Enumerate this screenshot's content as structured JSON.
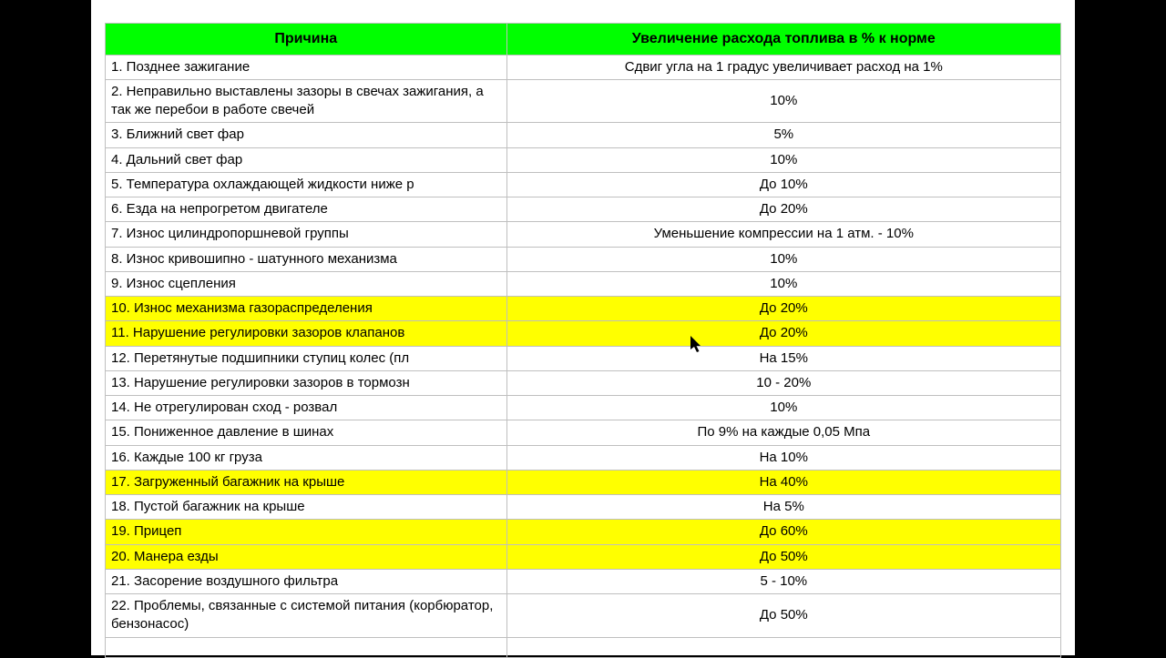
{
  "table": {
    "header_bg": "#00ff00",
    "highlight_bg": "#ffff00",
    "border_color": "#bfbfbf",
    "columns": [
      "Причина",
      "Увеличение расхода топлива в % к норме"
    ],
    "rows": [
      {
        "cause": "1. Позднее зажигание",
        "value": "Сдвиг угла на 1 градус увеличивает расход на 1%",
        "highlight": false,
        "wrap": false
      },
      {
        "cause": "2. Неправильно выставлены зазоры в свечах зажигания, а так же перебои в работе свечей",
        "value": "10%",
        "highlight": false,
        "wrap": true
      },
      {
        "cause": "3. Ближний свет фар",
        "value": "5%",
        "highlight": false,
        "wrap": false
      },
      {
        "cause": "4. Дальний свет фар",
        "value": "10%",
        "highlight": false,
        "wrap": false
      },
      {
        "cause": "5. Температура охлаждающей жидкости ниже р",
        "value": "До 10%",
        "highlight": false,
        "wrap": false
      },
      {
        "cause": "6. Езда на непрогретом двигателе",
        "value": "До 20%",
        "highlight": false,
        "wrap": false
      },
      {
        "cause": "7. Износ цилиндропоршневой группы",
        "value": "Уменьшение компрессии на 1 атм. - 10%",
        "highlight": false,
        "wrap": false
      },
      {
        "cause": "8. Износ кривошипно - шатунного механизма",
        "value": "10%",
        "highlight": false,
        "wrap": false
      },
      {
        "cause": "9. Износ сцепления",
        "value": "10%",
        "highlight": false,
        "wrap": false
      },
      {
        "cause": "10. Износ механизма газораспределения",
        "value": "До 20%",
        "highlight": true,
        "wrap": false
      },
      {
        "cause": "11. Нарушение регулировки зазоров клапанов",
        "value": "До 20%",
        "highlight": true,
        "wrap": false
      },
      {
        "cause": "12. Перетянутые подшипники ступиц колес (пл",
        "value": "На 15%",
        "highlight": false,
        "wrap": false
      },
      {
        "cause": "13. Нарушение регулировки зазоров в тормозн",
        "value": "10 - 20%",
        "highlight": false,
        "wrap": false
      },
      {
        "cause": "14. Не отрегулирован сход - розвал",
        "value": "10%",
        "highlight": false,
        "wrap": false
      },
      {
        "cause": "15. Пониженное давление в шинах",
        "value": "По 9% на каждые 0,05 Мпа",
        "highlight": false,
        "wrap": false
      },
      {
        "cause": "16. Каждые 100 кг груза",
        "value": "На 10%",
        "highlight": false,
        "wrap": false
      },
      {
        "cause": "17. Загруженный багажник на крыше",
        "value": "На 40%",
        "highlight": true,
        "wrap": false
      },
      {
        "cause": "18. Пустой багажник на крыше",
        "value": "На 5%",
        "highlight": false,
        "wrap": false
      },
      {
        "cause": "19. Прицеп",
        "value": "До 60%",
        "highlight": true,
        "wrap": false
      },
      {
        "cause": "20. Манера езды",
        "value": "До 50%",
        "highlight": true,
        "wrap": false
      },
      {
        "cause": "21. Засорение воздушного фильтра",
        "value": "5 - 10%",
        "highlight": false,
        "wrap": false
      },
      {
        "cause": "22. Проблемы, связанные с системой питания (корбюратор, бензонасос)",
        "value": "До 50%",
        "highlight": false,
        "wrap": true
      }
    ]
  }
}
